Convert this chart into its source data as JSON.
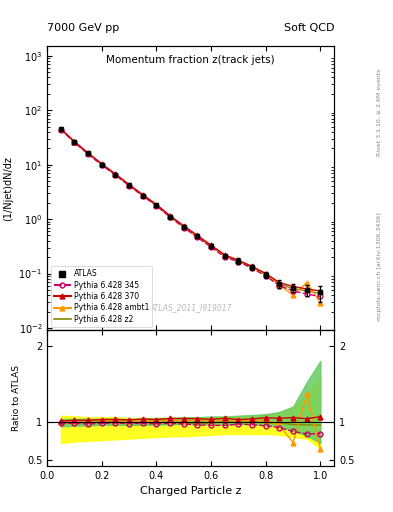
{
  "title_top_left": "7000 GeV pp",
  "title_top_right": "Soft QCD",
  "plot_title": "Momentum fraction z(track jets)",
  "ylabel_main": "(1/Njet)dN/dz",
  "ylabel_ratio": "Ratio to ATLAS",
  "xlabel": "Charged Particle z",
  "right_label_top": "Rivet 3.1.10, ≥ 2.6M events",
  "right_label_bottom": "mcplots.cern.ch [arXiv:1306.3436]",
  "watermark": "ATLAS_2011_I919017",
  "atlas_label": "ATLAS",
  "xlim": [
    0.0,
    1.05
  ],
  "ylim_main": [
    0.009,
    1500
  ],
  "ylim_ratio": [
    0.42,
    2.2
  ],
  "z_data": [
    0.05,
    0.1,
    0.15,
    0.2,
    0.25,
    0.3,
    0.35,
    0.4,
    0.45,
    0.5,
    0.55,
    0.6,
    0.65,
    0.7,
    0.75,
    0.8,
    0.85,
    0.9,
    0.95,
    1.0
  ],
  "atlas_y": [
    45,
    26,
    16,
    10,
    6.5,
    4.2,
    2.7,
    1.8,
    1.1,
    0.72,
    0.48,
    0.32,
    0.21,
    0.17,
    0.13,
    0.095,
    0.065,
    0.055,
    0.05,
    0.045
  ],
  "atlas_yerr": [
    2.5,
    1.5,
    0.9,
    0.6,
    0.4,
    0.25,
    0.15,
    0.12,
    0.08,
    0.05,
    0.04,
    0.03,
    0.02,
    0.02,
    0.015,
    0.012,
    0.01,
    0.01,
    0.012,
    0.015
  ],
  "p345_y": [
    44,
    25.5,
    15.5,
    9.8,
    6.4,
    4.1,
    2.65,
    1.75,
    1.08,
    0.7,
    0.46,
    0.305,
    0.2,
    0.165,
    0.125,
    0.09,
    0.06,
    0.048,
    0.042,
    0.038
  ],
  "p345_ratio": [
    0.98,
    0.98,
    0.97,
    0.98,
    0.985,
    0.976,
    0.98,
    0.972,
    0.982,
    0.972,
    0.958,
    0.953,
    0.952,
    0.97,
    0.962,
    0.947,
    0.923,
    0.873,
    0.84,
    0.845
  ],
  "p370_y": [
    45.5,
    26.5,
    16.3,
    10.3,
    6.7,
    4.3,
    2.8,
    1.85,
    1.15,
    0.75,
    0.5,
    0.33,
    0.22,
    0.175,
    0.135,
    0.1,
    0.068,
    0.058,
    0.052,
    0.048
  ],
  "p370_ratio": [
    1.01,
    1.02,
    1.02,
    1.03,
    1.031,
    1.024,
    1.037,
    1.028,
    1.045,
    1.042,
    1.042,
    1.031,
    1.048,
    1.029,
    1.038,
    1.053,
    1.046,
    1.055,
    1.04,
    1.067
  ],
  "pambt1_y": [
    45.2,
    26.2,
    16.2,
    10.2,
    6.6,
    4.25,
    2.73,
    1.82,
    1.12,
    0.73,
    0.49,
    0.325,
    0.214,
    0.173,
    0.132,
    0.097,
    0.062,
    0.04,
    0.068,
    0.029
  ],
  "pambt1_ratio": [
    1.005,
    1.008,
    1.013,
    1.02,
    1.015,
    1.012,
    1.011,
    1.011,
    1.018,
    1.014,
    1.021,
    1.016,
    1.019,
    1.018,
    1.015,
    1.021,
    0.954,
    0.727,
    1.36,
    0.644
  ],
  "pz2_y": [
    44.5,
    25.8,
    15.8,
    10.0,
    6.5,
    4.15,
    2.68,
    1.78,
    1.1,
    0.71,
    0.47,
    0.315,
    0.21,
    0.168,
    0.13,
    0.094,
    0.064,
    0.053,
    0.048,
    0.043
  ],
  "pz2_ratio": [
    0.988,
    0.992,
    0.988,
    0.998,
    1.0,
    0.988,
    0.993,
    0.989,
    1.0,
    0.986,
    0.979,
    0.984,
    1.0,
    0.988,
    1.0,
    0.989,
    0.985,
    0.964,
    0.96,
    0.956
  ],
  "color_345": "#cc0066",
  "color_370": "#cc0000",
  "color_ambt1": "#ff9900",
  "color_z2": "#888800",
  "color_atlas": "#000000",
  "band_color_z2": "#ffff00",
  "band_color_ambt1": "#66cc66",
  "z2_band_lo": [
    0.72,
    0.74,
    0.75,
    0.76,
    0.77,
    0.78,
    0.79,
    0.8,
    0.81,
    0.81,
    0.82,
    0.83,
    0.84,
    0.84,
    0.84,
    0.84,
    0.83,
    0.8,
    0.78,
    0.65
  ],
  "z2_band_hi": [
    1.08,
    1.07,
    1.06,
    1.06,
    1.06,
    1.05,
    1.05,
    1.05,
    1.05,
    1.05,
    1.06,
    1.06,
    1.07,
    1.07,
    1.08,
    1.09,
    1.12,
    1.2,
    1.35,
    1.6
  ],
  "ambt1_band_lo": [
    0.94,
    0.95,
    0.95,
    0.96,
    0.96,
    0.96,
    0.96,
    0.96,
    0.97,
    0.97,
    0.97,
    0.97,
    0.97,
    0.97,
    0.97,
    0.96,
    0.94,
    0.88,
    0.82,
    0.72
  ],
  "ambt1_band_hi": [
    1.04,
    1.04,
    1.04,
    1.04,
    1.04,
    1.04,
    1.04,
    1.05,
    1.05,
    1.06,
    1.06,
    1.07,
    1.07,
    1.08,
    1.09,
    1.1,
    1.13,
    1.2,
    1.52,
    1.8
  ]
}
